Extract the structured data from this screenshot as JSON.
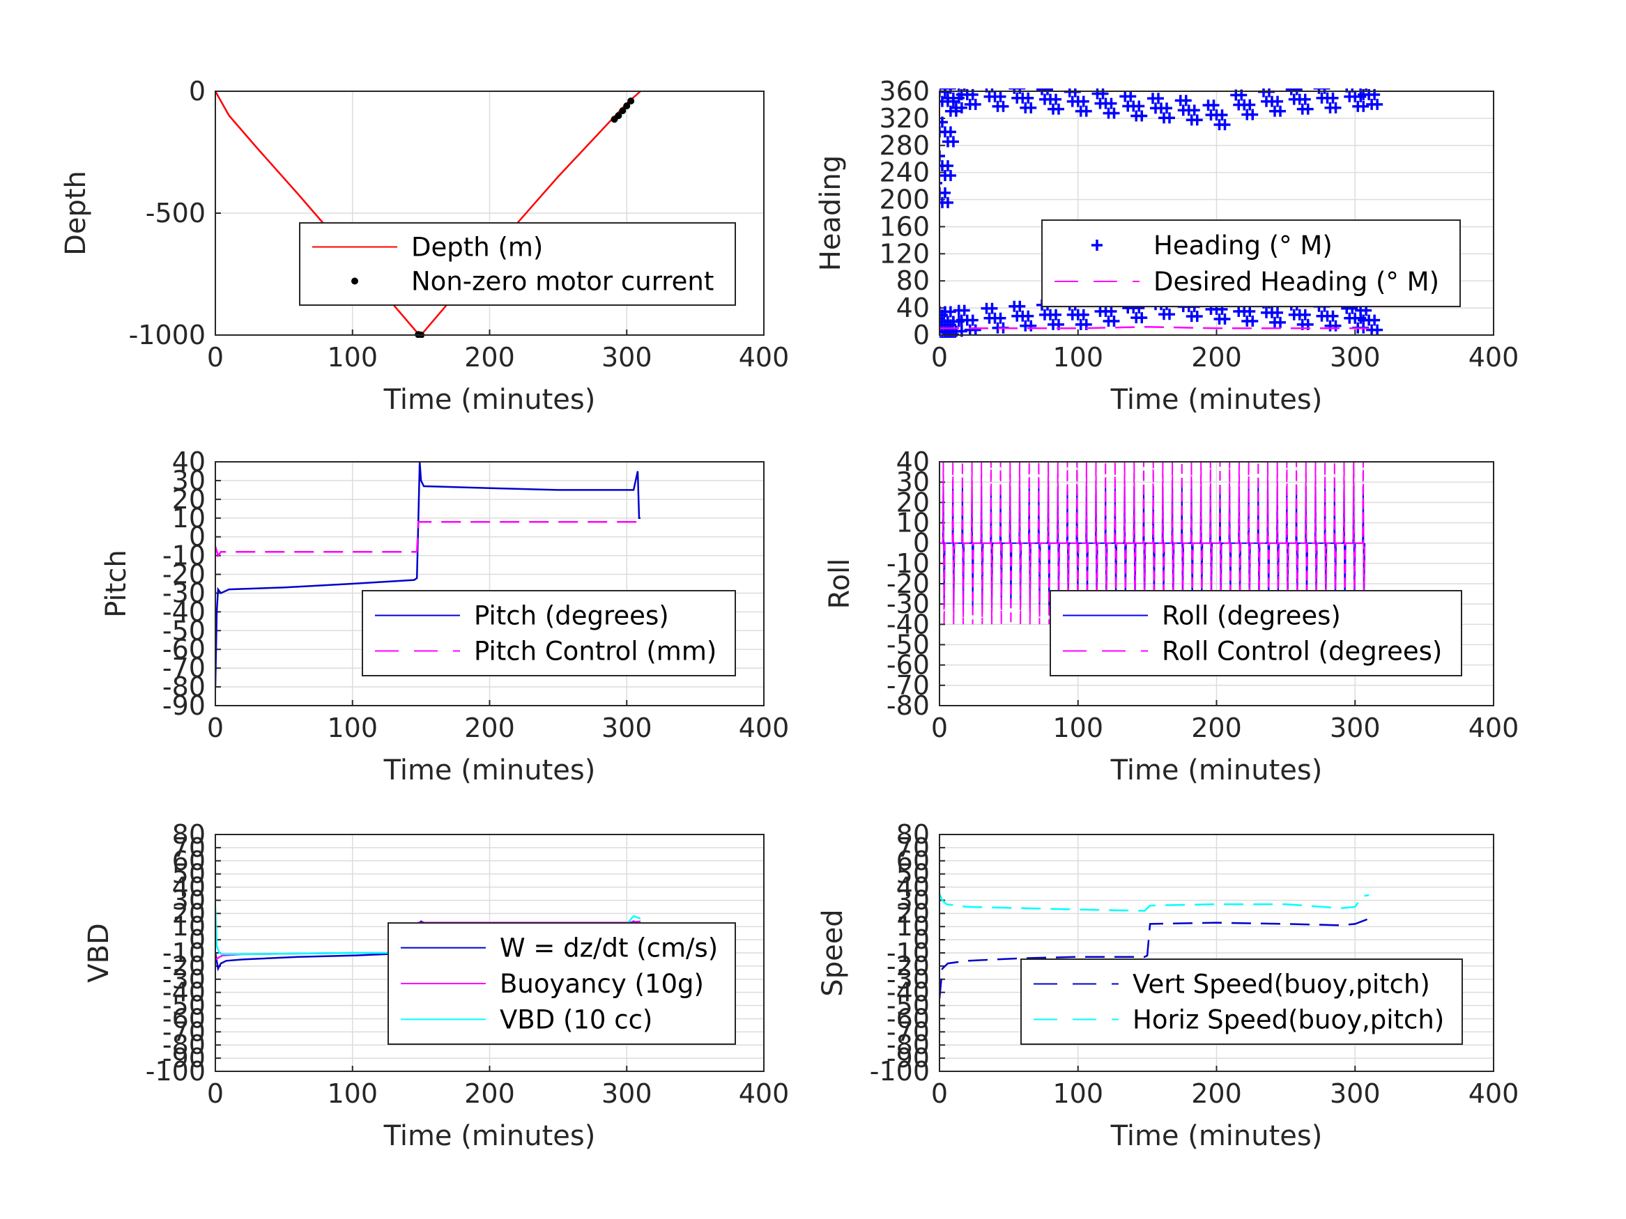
{
  "chart_data": [
    {
      "type": "line",
      "xlabel": "Time (minutes)",
      "ylabel": "Depth",
      "xlim": [
        0,
        400
      ],
      "ylim": [
        -1000,
        0
      ],
      "xticks": [
        "0",
        "100",
        "200",
        "300",
        "400"
      ],
      "yticks": [
        "0",
        "-500",
        "-1000"
      ],
      "grid": true,
      "legend_position": "middle-right",
      "series": [
        {
          "name": "Depth (m)",
          "color": "#ff0000",
          "style": "solid",
          "x": [
            0,
            3,
            10,
            30,
            60,
            100,
            148,
            150,
            200,
            250,
            300,
            310
          ],
          "y": [
            0,
            -30,
            -100,
            -230,
            -420,
            -680,
            -995,
            -1000,
            -670,
            -350,
            -50,
            0
          ]
        },
        {
          "name": "Non-zero motor current",
          "color": "#000000",
          "style": "dot",
          "x": [
            148,
            150,
            291,
            294,
            297,
            300,
            303
          ],
          "y": [
            -998,
            -1000,
            -115,
            -100,
            -80,
            -60,
            -40
          ]
        }
      ]
    },
    {
      "type": "scatter",
      "xlabel": "Time (minutes)",
      "ylabel": "Heading",
      "xlim": [
        0,
        400
      ],
      "ylim": [
        0,
        360
      ],
      "xticks": [
        "0",
        "100",
        "200",
        "300",
        "400"
      ],
      "yticks": [
        "0",
        "40",
        "80",
        "120",
        "160",
        "200",
        "240",
        "280",
        "320",
        "360"
      ],
      "grid": true,
      "legend_position": "middle-right",
      "series": [
        {
          "name": "Heading (° M)",
          "color": "#0000ff",
          "style": "plus",
          "x": [
            0,
            2,
            4,
            6,
            10,
            20,
            40,
            60,
            80,
            100,
            120,
            140,
            160,
            180,
            200,
            220,
            240,
            260,
            280,
            300,
            310
          ],
          "y": [
            210,
            250,
            300,
            345,
            350,
            355,
            352,
            350,
            348,
            345,
            342,
            338,
            335,
            332,
            325,
            340,
            345,
            348,
            350,
            352,
            355
          ],
          "y_low": [
            5,
            10,
            15,
            20,
            20,
            22,
            25,
            28,
            30,
            30,
            35,
            40,
            45,
            42,
            38,
            35,
            33,
            30,
            28,
            25,
            22
          ]
        },
        {
          "name": "Desired Heading (° M)",
          "color": "#ff00ff",
          "style": "dash",
          "x": [
            0,
            100,
            150,
            200,
            310
          ],
          "y": [
            10,
            10,
            12,
            10,
            10
          ]
        }
      ]
    },
    {
      "type": "line",
      "xlabel": "Time (minutes)",
      "ylabel": "Pitch",
      "xlim": [
        0,
        400
      ],
      "ylim": [
        -90,
        40
      ],
      "xticks": [
        "0",
        "100",
        "200",
        "300",
        "400"
      ],
      "yticks": [
        "40",
        "30",
        "20",
        "10",
        "0",
        "-10",
        "-20",
        "-30",
        "-40",
        "-50",
        "-60",
        "-70",
        "-80",
        "-90"
      ],
      "grid": true,
      "legend_position": "middle-right",
      "series": [
        {
          "name": "Pitch (degrees)",
          "color": "#0000cc",
          "style": "solid",
          "x": [
            0,
            1,
            2,
            4,
            10,
            50,
            100,
            145,
            147,
            148,
            149,
            150,
            152,
            200,
            250,
            305,
            308,
            309,
            310
          ],
          "y": [
            -80,
            -40,
            -28,
            -30,
            -28,
            -27,
            -25,
            -23,
            -22,
            8,
            40,
            30,
            27,
            26,
            25,
            25,
            35,
            10,
            10
          ]
        },
        {
          "name": "Pitch Control (mm)",
          "color": "#ff00ff",
          "style": "dash",
          "x": [
            0,
            2,
            4,
            147,
            148,
            150,
            200,
            250,
            310
          ],
          "y": [
            -5,
            -10,
            -8,
            -8,
            8,
            8,
            8,
            8,
            8
          ]
        }
      ]
    },
    {
      "type": "line",
      "xlabel": "Time (minutes)",
      "ylabel": "Roll",
      "xlim": [
        0,
        400
      ],
      "ylim": [
        -80,
        40
      ],
      "xticks": [
        "0",
        "100",
        "200",
        "300",
        "400"
      ],
      "yticks": [
        "40",
        "30",
        "20",
        "10",
        "0",
        "-10",
        "-20",
        "-30",
        "-40",
        "-50",
        "-60",
        "-70",
        "-80"
      ],
      "grid": true,
      "legend_position": "middle-right",
      "series": [
        {
          "name": "Roll (degrees)",
          "color": "#0000ff",
          "style": "solid",
          "oscillation": {
            "x_start": 0,
            "x_end": 310,
            "cycles": 45,
            "y_min": -32,
            "y_max": 28,
            "center": 0
          }
        },
        {
          "name": "Roll Control (degrees)",
          "color": "#ff00ff",
          "style": "dash",
          "oscillation": {
            "x_start": 0,
            "x_end": 310,
            "cycles": 45,
            "y_min": -40,
            "y_max": 40,
            "center": 0
          }
        }
      ]
    },
    {
      "type": "line",
      "xlabel": "Time (minutes)",
      "ylabel": "VBD",
      "xlim": [
        0,
        400
      ],
      "ylim": [
        -100,
        80
      ],
      "xticks": [
        "0",
        "100",
        "200",
        "300",
        "400"
      ],
      "yticks": [
        "80",
        "70",
        "60",
        "50",
        "40",
        "30",
        "20",
        "10",
        "0",
        "-10",
        "-20",
        "-30",
        "-40",
        "-50",
        "-60",
        "-70",
        "-80",
        "-90",
        "-100"
      ],
      "grid": true,
      "legend_position": "middle-right",
      "series": [
        {
          "name": "W = dz/dt (cm/s)",
          "color": "#0000cc",
          "style": "solid",
          "x": [
            0,
            2,
            4,
            8,
            20,
            60,
            100,
            146,
            147,
            148,
            150,
            152,
            200,
            250,
            300,
            305,
            310
          ],
          "y": [
            -10,
            -22,
            -18,
            -16,
            -15,
            -13,
            -12,
            -10,
            -10,
            12,
            14,
            13,
            12,
            12,
            12,
            14,
            12
          ]
        },
        {
          "name": "Buoyancy (10g)",
          "color": "#ff00ff",
          "style": "solid",
          "x": [
            0,
            5,
            20,
            100,
            147,
            148,
            200,
            300,
            310
          ],
          "y": [
            -15,
            -12,
            -11,
            -10,
            -10,
            13,
            13,
            13,
            14
          ]
        },
        {
          "name": "VBD (10 cc)",
          "color": "#00ffff",
          "style": "solid",
          "x": [
            0,
            1,
            3,
            5,
            20,
            100,
            147,
            148,
            200,
            300,
            305,
            310
          ],
          "y": [
            25,
            -5,
            -10,
            -11,
            -11,
            -10,
            -10,
            12,
            12,
            12,
            18,
            16
          ]
        }
      ]
    },
    {
      "type": "line",
      "xlabel": "Time (minutes)",
      "ylabel": "Speed",
      "xlim": [
        0,
        400
      ],
      "ylim": [
        -100,
        80
      ],
      "xticks": [
        "0",
        "100",
        "200",
        "300",
        "400"
      ],
      "yticks": [
        "80",
        "70",
        "60",
        "50",
        "40",
        "30",
        "20",
        "10",
        "0",
        "-10",
        "-20",
        "-30",
        "-40",
        "-50",
        "-60",
        "-70",
        "-80",
        "-90",
        "-100"
      ],
      "grid": true,
      "legend_position": "middle-right",
      "series": [
        {
          "name": "Vert Speed(buoy,pitch)",
          "color": "#0000cc",
          "style": "dash",
          "x": [
            0,
            2,
            6,
            20,
            60,
            100,
            148,
            150,
            152,
            200,
            250,
            290,
            300,
            310
          ],
          "y": [
            -45,
            -22,
            -18,
            -16,
            -14,
            -13,
            -13,
            -12,
            12,
            13,
            12,
            11,
            12,
            16
          ]
        },
        {
          "name": "Horiz Speed(buoy,pitch)",
          "color": "#00ffff",
          "style": "dash",
          "x": [
            0,
            2,
            5,
            20,
            60,
            100,
            148,
            152,
            200,
            250,
            290,
            300,
            305,
            310
          ],
          "y": [
            35,
            30,
            27,
            25,
            24,
            23,
            22,
            26,
            27,
            27,
            24,
            25,
            33,
            34
          ]
        }
      ]
    }
  ]
}
